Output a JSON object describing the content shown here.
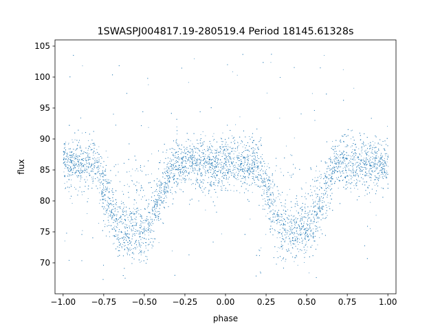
{
  "chart_data": {
    "type": "scatter",
    "title": "1SWASPJ004817.19-280519.4 Period 18145.61328s",
    "xlabel": "phase",
    "ylabel": "flux",
    "xlim": [
      -1.05,
      1.05
    ],
    "ylim": [
      65.0,
      106.0
    ],
    "x_ticks": [
      -1.0,
      -0.75,
      -0.5,
      -0.25,
      0.0,
      0.25,
      0.5,
      0.75,
      1.0
    ],
    "x_tick_labels": [
      "−1.00",
      "−0.75",
      "−0.50",
      "−0.25",
      "0.00",
      "0.25",
      "0.50",
      "0.75",
      "1.00"
    ],
    "y_ticks": [
      70,
      75,
      80,
      85,
      90,
      95,
      100,
      105
    ],
    "y_tick_labels": [
      "70",
      "75",
      "80",
      "85",
      "90",
      "95",
      "100",
      "105"
    ],
    "grid": false,
    "legend": "none",
    "colors": {
      "points": "#1f77b4"
    },
    "series": [
      {
        "description_of_shape": "phase-folded light curve, two full cycles from phase -1 to 1",
        "x_range": [
          -1.0,
          1.0
        ],
        "baseline_flux": 86.0,
        "baseline_band": [
          82.5,
          89.5
        ],
        "eclipse_minima": [
          {
            "phase": -0.57,
            "flux": 75.0
          },
          {
            "phase": 0.43,
            "flux": 75.0
          }
        ],
        "eclipse_ingress_egress": [
          [
            -0.78,
            -0.32
          ],
          [
            0.22,
            0.68
          ]
        ],
        "outlier_flux_range": [
          67.0,
          104.0
        ]
      }
    ],
    "sample_points": [
      [
        -1.0,
        86.0
      ],
      [
        -0.9,
        86.0
      ],
      [
        -0.8,
        85.5
      ],
      [
        -0.75,
        81.5
      ],
      [
        -0.7,
        78.0
      ],
      [
        -0.65,
        75.5
      ],
      [
        -0.6,
        75.0
      ],
      [
        -0.55,
        74.8
      ],
      [
        -0.5,
        75.5
      ],
      [
        -0.45,
        77.5
      ],
      [
        -0.4,
        80.5
      ],
      [
        -0.35,
        84.0
      ],
      [
        -0.3,
        86.0
      ],
      [
        -0.2,
        86.0
      ],
      [
        -0.1,
        86.0
      ],
      [
        0.0,
        86.0
      ],
      [
        0.1,
        86.0
      ],
      [
        0.2,
        85.5
      ],
      [
        0.25,
        81.5
      ],
      [
        0.3,
        78.0
      ],
      [
        0.35,
        75.5
      ],
      [
        0.4,
        75.0
      ],
      [
        0.45,
        74.8
      ],
      [
        0.5,
        75.5
      ],
      [
        0.55,
        77.5
      ],
      [
        0.6,
        80.5
      ],
      [
        0.65,
        84.0
      ],
      [
        0.7,
        86.0
      ],
      [
        0.8,
        86.0
      ],
      [
        0.9,
        86.0
      ],
      [
        1.0,
        86.0
      ]
    ]
  }
}
